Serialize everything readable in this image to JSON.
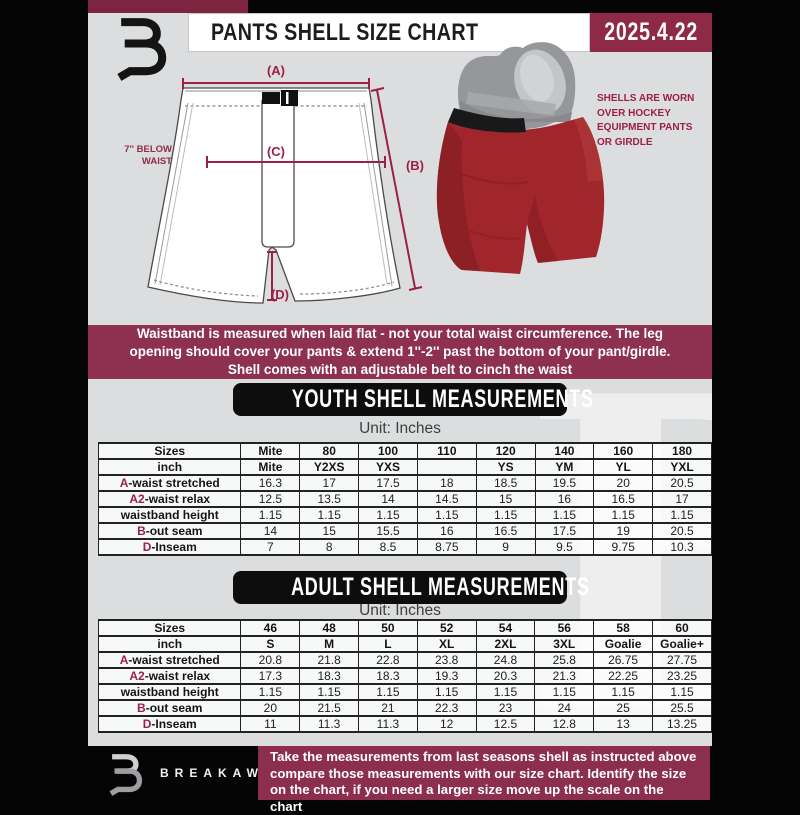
{
  "colors": {
    "maroon": "#8e2e4e",
    "accent": "#9c2044",
    "strip": "#7c2440",
    "bg_gray": "#dcddde",
    "shell_red": "#a1262b",
    "box_black": "#0d0d0d"
  },
  "header": {
    "title": "PANTS SHELL SIZE CHART",
    "date": "2025.4.22"
  },
  "diagram": {
    "label_a": "(A)",
    "label_b": "(B)",
    "label_c": "(C)",
    "label_d": "(D)",
    "waist_note_line1": "7'' BELOW",
    "waist_note_line2": "WAIST",
    "side_note_line1": "SHELLS ARE WORN",
    "side_note_line2": "OVER HOCKEY",
    "side_note_line3": "EQUIPMENT PANTS",
    "side_note_line4": "OR GIRDLE"
  },
  "banner": {
    "lines": [
      "Waistband is measured when laid flat - not your total waist circumference. The leg",
      "opening should cover your pants & extend 1''-2'' past the bottom of your pant/girdle.",
      "Shell comes with an adjustable belt to cinch the waist"
    ]
  },
  "youth": {
    "title": "YOUTH SHELL MEASUREMENTS",
    "unit": "Unit: Inches",
    "columns": [
      "Sizes",
      "Mite",
      "80",
      "100",
      "110",
      "120",
      "140",
      "160",
      "180"
    ],
    "row2": [
      "inch",
      "Mite",
      "Y2XS",
      "YXS",
      "",
      "YS",
      "YM",
      "YL",
      "YXL"
    ],
    "rows": [
      {
        "prefix": "A",
        "label": "-waist stretched",
        "values": [
          "16.3",
          "17",
          "17.5",
          "18",
          "18.5",
          "19.5",
          "20",
          "20.5"
        ]
      },
      {
        "prefix": "A2",
        "label": "-waist relax",
        "values": [
          "12.5",
          "13.5",
          "14",
          "14.5",
          "15",
          "16",
          "16.5",
          "17"
        ]
      },
      {
        "prefix": "",
        "label": "waistband height",
        "values": [
          "1.15",
          "1.15",
          "1.15",
          "1.15",
          "1.15",
          "1.15",
          "1.15",
          "1.15"
        ]
      },
      {
        "prefix": "B",
        "label": "-out seam",
        "values": [
          "14",
          "15",
          "15.5",
          "16",
          "16.5",
          "17.5",
          "19",
          "20.5"
        ]
      },
      {
        "prefix": "D",
        "label": "-Inseam",
        "values": [
          "7",
          "8",
          "8.5",
          "8.75",
          "9",
          "9.5",
          "9.75",
          "10.3"
        ]
      }
    ]
  },
  "adult": {
    "title": "ADULT SHELL MEASUREMENTS",
    "unit": "Unit: Inches",
    "columns": [
      "Sizes",
      "46",
      "48",
      "50",
      "52",
      "54",
      "56",
      "58",
      "60"
    ],
    "row2": [
      "inch",
      "S",
      "M",
      "L",
      "XL",
      "2XL",
      "3XL",
      "Goalie",
      "Goalie+"
    ],
    "rows": [
      {
        "prefix": "A",
        "label": "-waist stretched",
        "values": [
          "20.8",
          "21.8",
          "22.8",
          "23.8",
          "24.8",
          "25.8",
          "26.75",
          "27.75"
        ]
      },
      {
        "prefix": "A2",
        "label": "-waist relax",
        "values": [
          "17.3",
          "18.3",
          "18.3",
          "19.3",
          "20.3",
          "21.3",
          "22.25",
          "23.25"
        ]
      },
      {
        "prefix": "",
        "label": "waistband height",
        "values": [
          "1.15",
          "1.15",
          "1.15",
          "1.15",
          "1.15",
          "1.15",
          "1.15",
          "1.15"
        ]
      },
      {
        "prefix": "B",
        "label": "-out seam",
        "values": [
          "20",
          "21.5",
          "21",
          "22.3",
          "23",
          "24",
          "25",
          "25.5"
        ]
      },
      {
        "prefix": "D",
        "label": "-Inseam",
        "values": [
          "11",
          "11.3",
          "11.3",
          "12",
          "12.5",
          "12.8",
          "13",
          "13.25"
        ]
      }
    ]
  },
  "footer": {
    "brand": "BREAKAWAY",
    "lines": [
      "Take the measurements from last seasons shell as instructed above",
      "compare those measurements  with our size chart. Identify the size",
      "on the chart, if you need a larger size move up the scale on the chart"
    ]
  },
  "watermark_letter": "B"
}
